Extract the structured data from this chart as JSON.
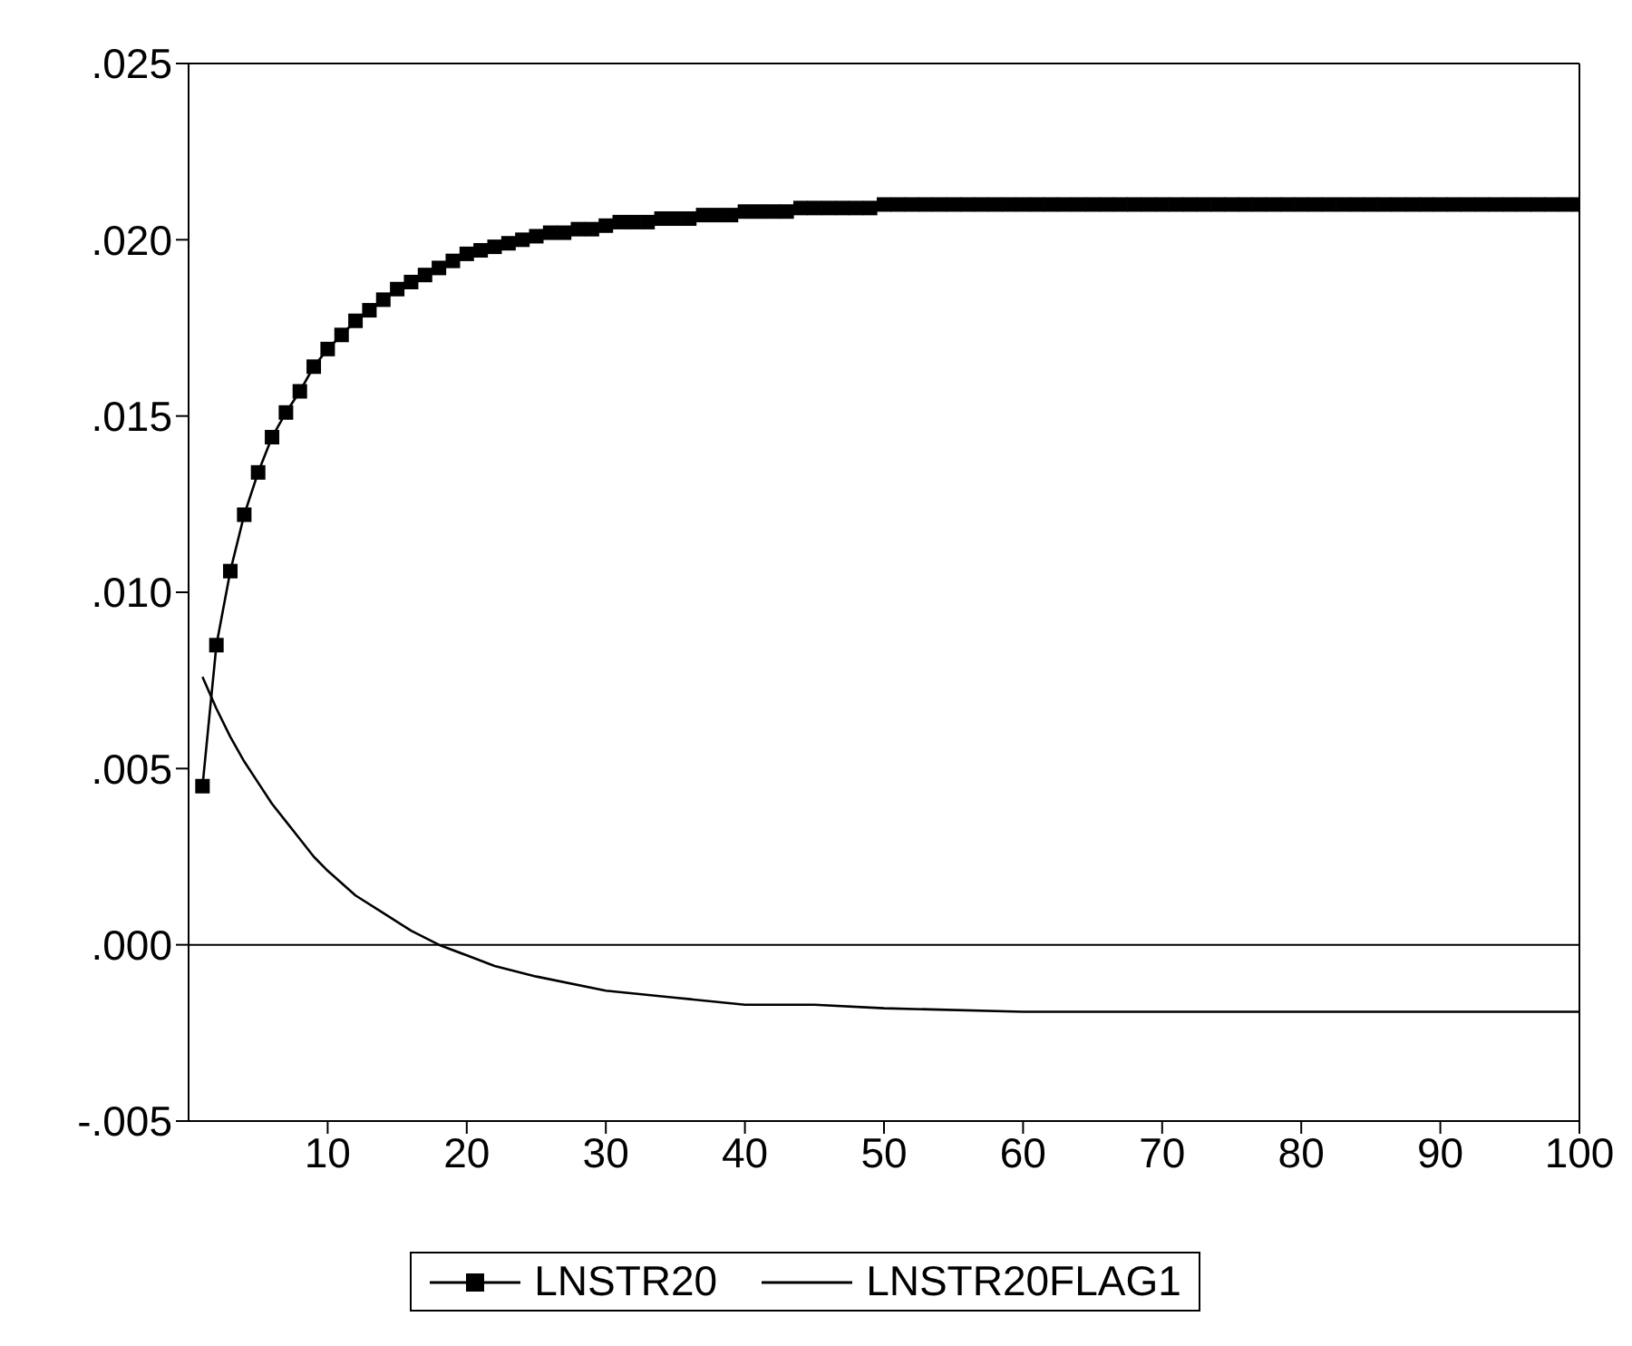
{
  "chart_data": {
    "type": "line",
    "series": [
      {
        "name": "LNSTR20",
        "color": "#000000",
        "marker": "square",
        "x": [
          1,
          2,
          3,
          4,
          5,
          6,
          7,
          8,
          9,
          10,
          11,
          12,
          13,
          14,
          15,
          16,
          17,
          18,
          19,
          20,
          21,
          22,
          23,
          24,
          25,
          26,
          27,
          28,
          29,
          30,
          31,
          32,
          33,
          34,
          35,
          36,
          37,
          38,
          39,
          40,
          41,
          42,
          43,
          44,
          45,
          46,
          47,
          48,
          49,
          50,
          51,
          52,
          53,
          54,
          55,
          56,
          57,
          58,
          59,
          60,
          61,
          62,
          63,
          64,
          65,
          66,
          67,
          68,
          69,
          70,
          71,
          72,
          73,
          74,
          75,
          76,
          77,
          78,
          79,
          80,
          81,
          82,
          83,
          84,
          85,
          86,
          87,
          88,
          89,
          90,
          91,
          92,
          93,
          94,
          95,
          96,
          97,
          98,
          99,
          100
        ],
        "values": [
          0.0045,
          0.0085,
          0.0106,
          0.0122,
          0.0134,
          0.0144,
          0.0151,
          0.0157,
          0.0164,
          0.0169,
          0.0173,
          0.0177,
          0.018,
          0.0183,
          0.0186,
          0.0188,
          0.019,
          0.0192,
          0.0194,
          0.0196,
          0.0197,
          0.0198,
          0.0199,
          0.02,
          0.0201,
          0.0202,
          0.0202,
          0.0203,
          0.0203,
          0.0204,
          0.0205,
          0.0205,
          0.0205,
          0.0206,
          0.0206,
          0.0206,
          0.0207,
          0.0207,
          0.0207,
          0.0208,
          0.0208,
          0.0208,
          0.0208,
          0.0209,
          0.0209,
          0.0209,
          0.0209,
          0.0209,
          0.0209,
          0.021,
          0.021,
          0.021,
          0.021,
          0.021,
          0.021,
          0.021,
          0.021,
          0.021,
          0.021,
          0.021,
          0.021,
          0.021,
          0.021,
          0.021,
          0.021,
          0.021,
          0.021,
          0.021,
          0.021,
          0.021,
          0.021,
          0.021,
          0.021,
          0.021,
          0.021,
          0.021,
          0.021,
          0.021,
          0.021,
          0.021,
          0.021,
          0.021,
          0.021,
          0.021,
          0.021,
          0.021,
          0.021,
          0.021,
          0.021,
          0.021,
          0.021,
          0.021,
          0.021,
          0.021,
          0.021,
          0.021,
          0.021,
          0.021,
          0.021,
          0.021
        ]
      },
      {
        "name": "LNSTR20FLAG1",
        "color": "#000000",
        "marker": "none",
        "x": [
          1,
          2,
          3,
          4,
          5,
          6,
          7,
          8,
          9,
          10,
          12,
          14,
          16,
          18,
          20,
          22,
          25,
          30,
          35,
          40,
          45,
          50,
          60,
          100
        ],
        "values": [
          0.0076,
          0.0067,
          0.0059,
          0.0052,
          0.0046,
          0.004,
          0.0035,
          0.003,
          0.0025,
          0.0021,
          0.0014,
          0.0009,
          0.0004,
          0.0,
          -0.0003,
          -0.0006,
          -0.0009,
          -0.0013,
          -0.0015,
          -0.0017,
          -0.0017,
          -0.0018,
          -0.0019,
          -0.0019
        ]
      }
    ],
    "xlim": [
      0,
      100
    ],
    "xticks": [
      10,
      20,
      30,
      40,
      50,
      60,
      70,
      80,
      90,
      100
    ],
    "ylim": [
      -0.005,
      0.025
    ],
    "yticks": [
      {
        "value": -0.005,
        "label": "-.005"
      },
      {
        "value": 0,
        "label": ".000"
      },
      {
        "value": 0.005,
        "label": ".005"
      },
      {
        "value": 0.01,
        "label": ".010"
      },
      {
        "value": 0.015,
        "label": ".015"
      },
      {
        "value": 0.02,
        "label": ".020"
      },
      {
        "value": 0.025,
        "label": ".025"
      }
    ],
    "ref_lines": [
      {
        "axis": "y",
        "value": 0,
        "color": "#000000"
      }
    ],
    "grid": false,
    "legend": "bottom"
  }
}
